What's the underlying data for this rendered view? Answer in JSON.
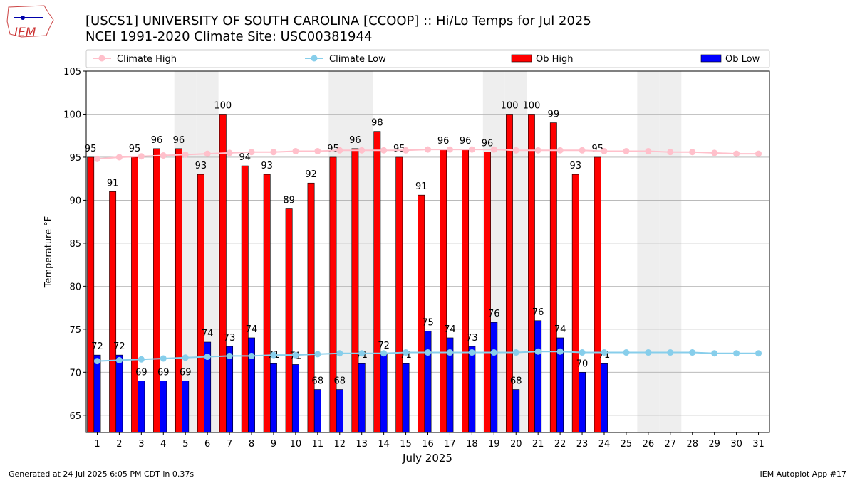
{
  "chart_data": {
    "type": "bar",
    "title": "[USCS1] UNIVERSITY OF SOUTH CAROLINA [CCOOP] :: Hi/Lo Temps for Jul 2025",
    "subtitle": "NCEI 1991-2020 Climate Site: USC00381944",
    "logo": "IEM",
    "xlabel": "July 2025",
    "ylabel": "Temperature °F",
    "footer_left": "Generated at 24 Jul 2025 6:05 PM CDT in 0.37s",
    "footer_right": "IEM Autoplot App #17",
    "categories": [
      "1",
      "2",
      "3",
      "4",
      "5",
      "6",
      "7",
      "8",
      "9",
      "10",
      "11",
      "12",
      "13",
      "14",
      "15",
      "16",
      "17",
      "18",
      "19",
      "20",
      "21",
      "22",
      "23",
      "24",
      "25",
      "26",
      "27",
      "28",
      "29",
      "30",
      "31"
    ],
    "shaded_categories": [
      "5",
      "6",
      "12",
      "13",
      "19",
      "20",
      "26",
      "27"
    ],
    "ylim": [
      63,
      105
    ],
    "yticks": [
      65,
      70,
      75,
      80,
      85,
      90,
      95,
      100,
      105
    ],
    "grid": true,
    "series": [
      {
        "name": "Climate High",
        "kind": "line",
        "color": "#ffc0cb",
        "values": [
          94.8,
          95.0,
          95.1,
          95.2,
          95.3,
          95.4,
          95.5,
          95.6,
          95.6,
          95.7,
          95.7,
          95.8,
          95.8,
          95.8,
          95.8,
          95.9,
          95.9,
          95.9,
          95.9,
          95.8,
          95.8,
          95.8,
          95.8,
          95.7,
          95.7,
          95.7,
          95.6,
          95.6,
          95.5,
          95.4,
          95.4
        ]
      },
      {
        "name": "Climate Low",
        "kind": "line",
        "color": "#87ceeb",
        "values": [
          71.3,
          71.4,
          71.5,
          71.6,
          71.7,
          71.8,
          71.9,
          71.9,
          72.0,
          72.0,
          72.1,
          72.2,
          72.2,
          72.2,
          72.3,
          72.3,
          72.3,
          72.3,
          72.3,
          72.3,
          72.4,
          72.4,
          72.3,
          72.3,
          72.3,
          72.3,
          72.3,
          72.3,
          72.2,
          72.2,
          72.2
        ]
      },
      {
        "name": "Ob High",
        "kind": "bar",
        "color": "#ff0000",
        "values": [
          95,
          91,
          95,
          96,
          96,
          93,
          100,
          94,
          93,
          89,
          92,
          95,
          96,
          98,
          95,
          90.6,
          95.9,
          95.9,
          95.6,
          100,
          100,
          99,
          93,
          95,
          null,
          null,
          null,
          null,
          null,
          null,
          null
        ],
        "value_labels": [
          "95",
          "91",
          "95",
          "96",
          "96",
          "93",
          "100",
          "94",
          "93",
          "89",
          "92",
          "95",
          "96",
          "98",
          "95",
          "91",
          "96",
          "96",
          "96",
          "100",
          "100",
          "99",
          "93",
          "95",
          null,
          null,
          null,
          null,
          null,
          null,
          null
        ]
      },
      {
        "name": "Ob Low",
        "kind": "bar",
        "color": "#0000ff",
        "values": [
          72,
          72,
          69,
          69,
          69,
          73.5,
          73,
          74,
          71,
          70.9,
          68,
          68,
          71,
          72.1,
          71,
          74.8,
          74,
          73,
          75.8,
          68,
          76,
          74,
          70,
          71,
          null,
          null,
          null,
          null,
          null,
          null,
          null
        ],
        "value_labels": [
          "72",
          "72",
          "69",
          "69",
          "69",
          "74",
          "73",
          "74",
          "71",
          "71",
          "68",
          "68",
          "71",
          "72",
          "71",
          "75",
          "74",
          "73",
          "76",
          "68",
          "76",
          "74",
          "70",
          "71",
          null,
          null,
          null,
          null,
          null,
          null,
          null
        ]
      }
    ]
  }
}
